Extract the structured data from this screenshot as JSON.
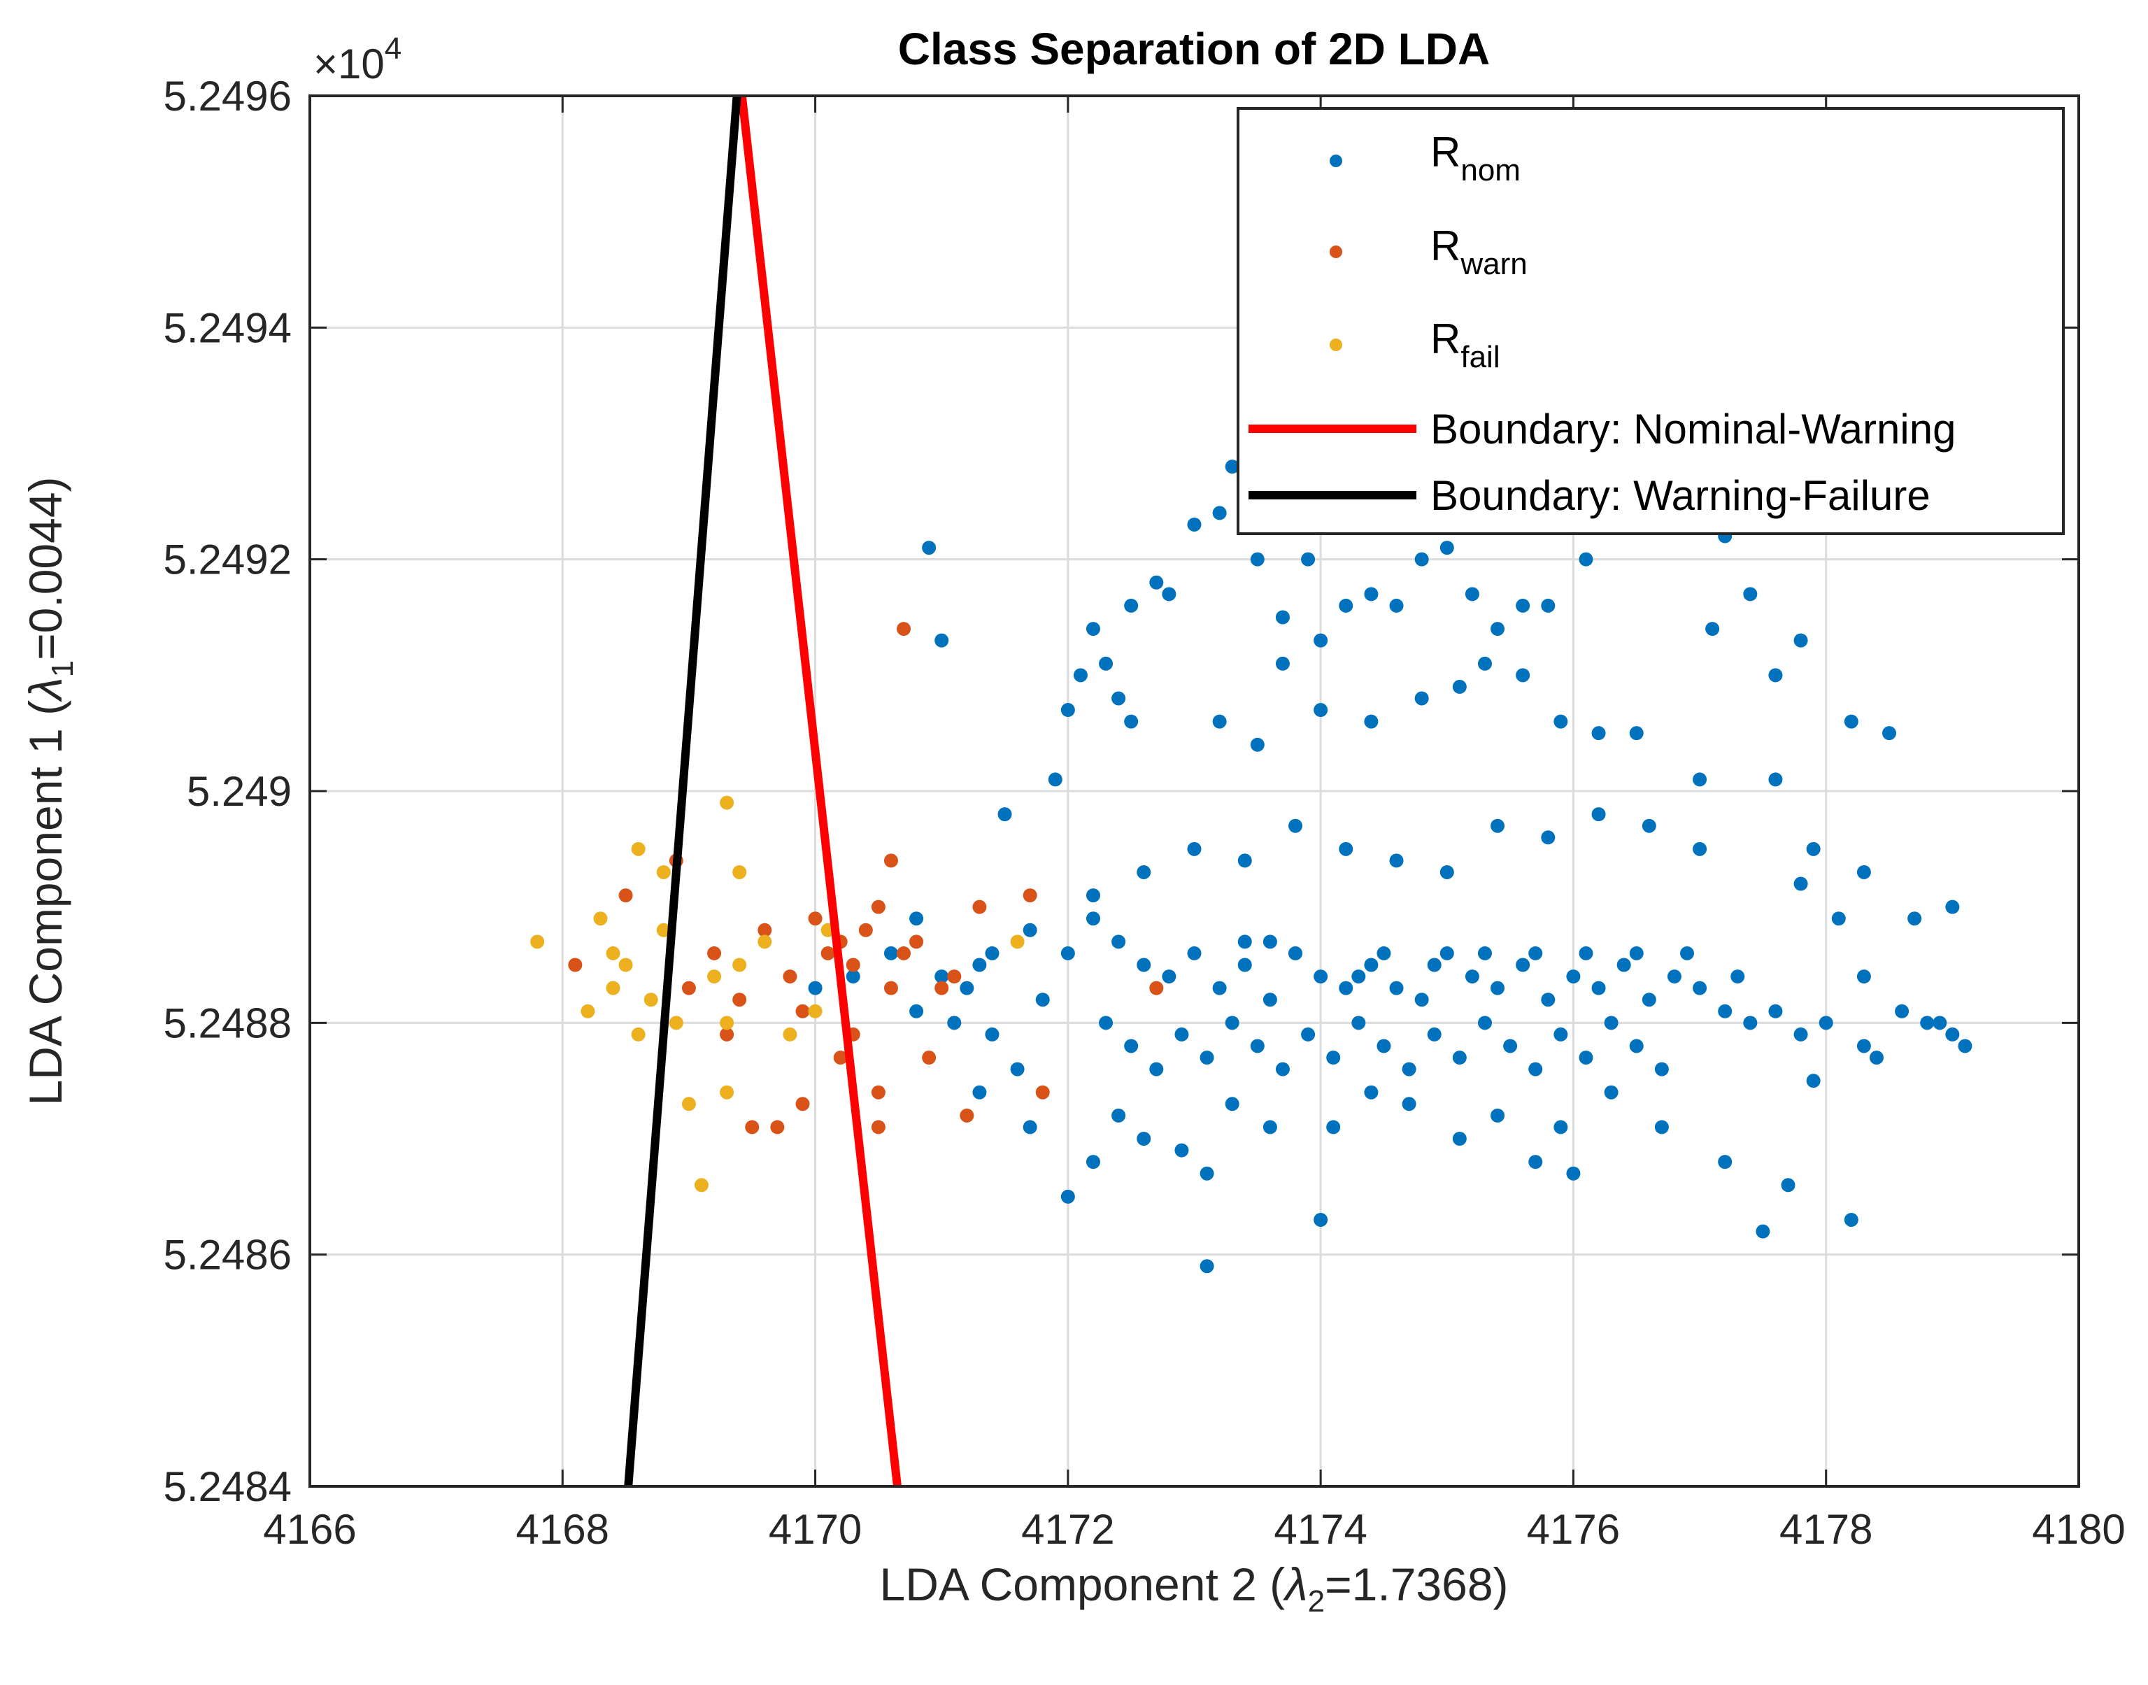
{
  "chart_data": {
    "type": "scatter",
    "title": "Class Separation of 2D LDA",
    "xlabel": {
      "prefix": "LDA Component 2 (",
      "symbol": "λ",
      "sub": "2",
      "suffix": "=1.7368)"
    },
    "ylabel": {
      "prefix": "LDA Component 1 (",
      "symbol": "λ",
      "sub": "1",
      "suffix": "=0.0044)"
    },
    "xlim": [
      4166,
      4180
    ],
    "ylim": [
      5.2484,
      5.2496
    ],
    "y_multiplier": {
      "base": "×10",
      "exp": "4"
    },
    "xticks": [
      4166,
      4168,
      4170,
      4172,
      4174,
      4176,
      4178,
      4180
    ],
    "xtick_labels": [
      "4166",
      "4168",
      "4170",
      "4172",
      "4174",
      "4176",
      "4178",
      "4180"
    ],
    "yticks": [
      5.2484,
      5.2486,
      5.2488,
      5.249,
      5.2492,
      5.2494,
      5.2496
    ],
    "ytick_labels": [
      "5.2484",
      "5.2486",
      "5.2488",
      "5.249",
      "5.2492",
      "5.2494",
      "5.2496"
    ],
    "grid": true,
    "legend_position": "top-right",
    "colors": {
      "nominal": "#0072BD",
      "warning": "#D95319",
      "failure": "#EDB120",
      "boundary_nw": "#FF0000",
      "boundary_wf": "#000000"
    },
    "series": [
      {
        "name": "R",
        "sub": "nom",
        "kind": "scatter",
        "color_key": "nominal",
        "points": [
          [
            4170.9,
            5.24921
          ],
          [
            4171.0,
            5.24913
          ],
          [
            4171.5,
            5.24898
          ],
          [
            4171.9,
            5.24901
          ],
          [
            4172.0,
            5.24907
          ],
          [
            4172.1,
            5.2491
          ],
          [
            4172.3,
            5.24911
          ],
          [
            4172.2,
            5.24914
          ],
          [
            4172.4,
            5.24908
          ],
          [
            4172.5,
            5.24906
          ],
          [
            4172.5,
            5.24916
          ],
          [
            4172.7,
            5.24918
          ],
          [
            4172.8,
            5.24917
          ],
          [
            4173.0,
            5.24923
          ],
          [
            4173.2,
            5.24924
          ],
          [
            4173.3,
            5.24928
          ],
          [
            4173.4,
            5.24933
          ],
          [
            4173.5,
            5.2492
          ],
          [
            4173.7,
            5.24915
          ],
          [
            4173.9,
            5.2492
          ],
          [
            4174.0,
            5.24913
          ],
          [
            4174.2,
            5.24916
          ],
          [
            4174.4,
            5.24917
          ],
          [
            4174.6,
            5.24916
          ],
          [
            4174.8,
            5.2492
          ],
          [
            4175.0,
            5.24921
          ],
          [
            4175.2,
            5.24917
          ],
          [
            4175.4,
            5.24914
          ],
          [
            4175.6,
            5.24916
          ],
          [
            4175.8,
            5.24916
          ],
          [
            4176.1,
            5.2492
          ],
          [
            4177.2,
            5.24922
          ],
          [
            4177.4,
            5.24917
          ],
          [
            4177.8,
            5.24913
          ],
          [
            4177.1,
            5.24914
          ],
          [
            4173.2,
            5.24906
          ],
          [
            4173.5,
            5.24904
          ],
          [
            4173.7,
            5.24911
          ],
          [
            4174.0,
            5.24907
          ],
          [
            4174.4,
            5.24906
          ],
          [
            4174.8,
            5.24908
          ],
          [
            4175.1,
            5.24909
          ],
          [
            4175.3,
            5.24911
          ],
          [
            4175.6,
            5.2491
          ],
          [
            4175.9,
            5.24906
          ],
          [
            4176.2,
            5.24905
          ],
          [
            4176.5,
            5.24905
          ],
          [
            4177.0,
            5.24901
          ],
          [
            4177.6,
            5.2491
          ],
          [
            4178.2,
            5.24906
          ],
          [
            4172.0,
            5.24886
          ],
          [
            4172.2,
            5.24889
          ],
          [
            4172.4,
            5.24887
          ],
          [
            4172.6,
            5.24885
          ],
          [
            4172.8,
            5.24884
          ],
          [
            4173.0,
            5.24886
          ],
          [
            4173.2,
            5.24883
          ],
          [
            4173.4,
            5.24885
          ],
          [
            4173.6,
            5.24882
          ],
          [
            4173.8,
            5.24886
          ],
          [
            4174.0,
            5.24884
          ],
          [
            4174.2,
            5.24883
          ],
          [
            4174.4,
            5.24885
          ],
          [
            4174.6,
            5.24883
          ],
          [
            4174.8,
            5.24882
          ],
          [
            4175.0,
            5.24886
          ],
          [
            4175.2,
            5.24884
          ],
          [
            4175.4,
            5.24883
          ],
          [
            4175.6,
            5.24885
          ],
          [
            4175.8,
            5.24882
          ],
          [
            4176.0,
            5.24884
          ],
          [
            4176.2,
            5.24883
          ],
          [
            4176.4,
            5.24885
          ],
          [
            4176.6,
            5.24882
          ],
          [
            4176.8,
            5.24884
          ],
          [
            4177.0,
            5.24883
          ],
          [
            4177.2,
            5.24881
          ],
          [
            4177.4,
            5.2488
          ],
          [
            4177.6,
            5.24881
          ],
          [
            4177.8,
            5.24879
          ],
          [
            4178.0,
            5.2488
          ],
          [
            4178.3,
            5.24878
          ],
          [
            4178.6,
            5.24881
          ],
          [
            4178.9,
            5.2488
          ],
          [
            4179.1,
            5.24878
          ],
          [
            4172.3,
            5.2488
          ],
          [
            4172.5,
            5.24878
          ],
          [
            4172.7,
            5.24876
          ],
          [
            4172.9,
            5.24879
          ],
          [
            4173.1,
            5.24877
          ],
          [
            4173.3,
            5.2488
          ],
          [
            4173.5,
            5.24878
          ],
          [
            4173.7,
            5.24876
          ],
          [
            4173.9,
            5.24879
          ],
          [
            4174.1,
            5.24877
          ],
          [
            4174.3,
            5.2488
          ],
          [
            4174.5,
            5.24878
          ],
          [
            4174.7,
            5.24876
          ],
          [
            4174.9,
            5.24879
          ],
          [
            4175.1,
            5.24877
          ],
          [
            4175.3,
            5.2488
          ],
          [
            4175.5,
            5.24878
          ],
          [
            4175.7,
            5.24876
          ],
          [
            4175.9,
            5.24879
          ],
          [
            4176.1,
            5.24877
          ],
          [
            4176.3,
            5.2488
          ],
          [
            4176.5,
            5.24878
          ],
          [
            4176.7,
            5.24876
          ],
          [
            4171.2,
            5.24883
          ],
          [
            4171.4,
            5.24879
          ],
          [
            4171.6,
            5.24876
          ],
          [
            4171.8,
            5.24882
          ],
          [
            4171.3,
            5.24874
          ],
          [
            4171.7,
            5.24871
          ],
          [
            4172.0,
            5.24865
          ],
          [
            4172.2,
            5.24868
          ],
          [
            4172.4,
            5.24872
          ],
          [
            4172.6,
            5.2487
          ],
          [
            4172.9,
            5.24869
          ],
          [
            4173.1,
            5.24867
          ],
          [
            4173.1,
            5.24859
          ],
          [
            4173.3,
            5.24873
          ],
          [
            4173.6,
            5.24871
          ],
          [
            4174.0,
            5.24863
          ],
          [
            4174.1,
            5.24871
          ],
          [
            4174.4,
            5.24874
          ],
          [
            4174.7,
            5.24873
          ],
          [
            4175.1,
            5.2487
          ],
          [
            4175.4,
            5.24872
          ],
          [
            4175.7,
            5.24868
          ],
          [
            4175.9,
            5.24871
          ],
          [
            4176.0,
            5.24867
          ],
          [
            4176.3,
            5.24874
          ],
          [
            4176.7,
            5.24871
          ],
          [
            4177.2,
            5.24868
          ],
          [
            4177.5,
            5.24862
          ],
          [
            4177.7,
            5.24866
          ],
          [
            4178.2,
            5.24863
          ],
          [
            4177.9,
            5.24875
          ],
          [
            4178.4,
            5.24877
          ],
          [
            4178.8,
            5.2488
          ],
          [
            4179.0,
            5.24879
          ],
          [
            4177.8,
            5.24892
          ],
          [
            4178.1,
            5.24889
          ],
          [
            4178.3,
            5.24884
          ],
          [
            4178.7,
            5.24889
          ],
          [
            4177.9,
            5.24895
          ],
          [
            4178.3,
            5.24893
          ],
          [
            4177.0,
            5.24895
          ],
          [
            4176.6,
            5.24897
          ],
          [
            4176.2,
            5.24898
          ],
          [
            4175.8,
            5.24896
          ],
          [
            4175.4,
            5.24897
          ],
          [
            4175.0,
            5.24893
          ],
          [
            4174.6,
            5.24894
          ],
          [
            4174.2,
            5.24895
          ],
          [
            4173.8,
            5.24897
          ],
          [
            4173.4,
            5.24894
          ],
          [
            4173.0,
            5.24895
          ],
          [
            4172.6,
            5.24893
          ],
          [
            4172.2,
            5.24891
          ],
          [
            4171.7,
            5.24888
          ],
          [
            4171.4,
            5.24886
          ],
          [
            4171.0,
            5.24884
          ],
          [
            4170.8,
            5.24889
          ],
          [
            4170.6,
            5.24886
          ],
          [
            4170.3,
            5.24884
          ],
          [
            4170.0,
            5.24883
          ],
          [
            4170.8,
            5.24881
          ],
          [
            4171.1,
            5.2488
          ],
          [
            4171.3,
            5.24885
          ],
          [
            4173.4,
            5.24887
          ],
          [
            4173.6,
            5.24887
          ],
          [
            4173.8,
            5.24886
          ],
          [
            4174.3,
            5.24884
          ],
          [
            4174.5,
            5.24886
          ],
          [
            4174.9,
            5.24885
          ],
          [
            4175.3,
            5.24886
          ],
          [
            4175.7,
            5.24886
          ],
          [
            4176.1,
            5.24886
          ],
          [
            4176.5,
            5.24886
          ],
          [
            4176.9,
            5.24886
          ],
          [
            4177.3,
            5.24884
          ],
          [
            4179.0,
            5.2489
          ],
          [
            4178.5,
            5.24905
          ],
          [
            4177.6,
            5.24901
          ]
        ]
      },
      {
        "name": "R",
        "sub": "warn",
        "kind": "scatter",
        "color_key": "warning",
        "points": [
          [
            4168.1,
            5.24885
          ],
          [
            4168.5,
            5.24891
          ],
          [
            4168.9,
            5.24894
          ],
          [
            4169.2,
            5.24886
          ],
          [
            4169.4,
            5.24882
          ],
          [
            4169.6,
            5.24888
          ],
          [
            4169.8,
            5.24884
          ],
          [
            4169.9,
            5.24881
          ],
          [
            4170.0,
            5.24889
          ],
          [
            4170.1,
            5.24886
          ],
          [
            4170.2,
            5.24887
          ],
          [
            4170.3,
            5.24885
          ],
          [
            4170.4,
            5.24888
          ],
          [
            4170.5,
            5.2489
          ],
          [
            4170.6,
            5.24883
          ],
          [
            4170.7,
            5.24886
          ],
          [
            4170.8,
            5.24887
          ],
          [
            4171.0,
            5.24883
          ],
          [
            4171.1,
            5.24884
          ],
          [
            4171.3,
            5.2489
          ],
          [
            4171.7,
            5.24891
          ],
          [
            4169.5,
            5.24871
          ],
          [
            4169.7,
            5.24871
          ],
          [
            4170.2,
            5.24877
          ],
          [
            4170.5,
            5.24874
          ],
          [
            4170.5,
            5.24871
          ],
          [
            4170.7,
            5.24914
          ],
          [
            4170.6,
            5.24894
          ],
          [
            4169.3,
            5.24879
          ],
          [
            4169.9,
            5.24873
          ],
          [
            4170.9,
            5.24877
          ],
          [
            4171.2,
            5.24872
          ],
          [
            4171.8,
            5.24874
          ],
          [
            4172.7,
            5.24883
          ],
          [
            4170.3,
            5.24879
          ],
          [
            4169.0,
            5.24883
          ]
        ]
      },
      {
        "name": "R",
        "sub": "fail",
        "kind": "scatter",
        "color_key": "failure",
        "points": [
          [
            4167.8,
            5.24887
          ],
          [
            4168.3,
            5.24889
          ],
          [
            4168.4,
            5.24886
          ],
          [
            4168.5,
            5.24885
          ],
          [
            4168.6,
            5.24879
          ],
          [
            4168.7,
            5.24882
          ],
          [
            4168.8,
            5.24893
          ],
          [
            4168.8,
            5.24888
          ],
          [
            4168.9,
            5.2488
          ],
          [
            4169.0,
            5.24873
          ],
          [
            4169.1,
            5.24866
          ],
          [
            4169.2,
            5.24884
          ],
          [
            4169.3,
            5.2488
          ],
          [
            4169.4,
            5.24885
          ],
          [
            4169.3,
            5.24899
          ],
          [
            4169.4,
            5.24893
          ],
          [
            4169.6,
            5.24887
          ],
          [
            4169.8,
            5.24879
          ],
          [
            4170.0,
            5.24881
          ],
          [
            4168.4,
            5.24883
          ],
          [
            4168.2,
            5.24881
          ],
          [
            4168.6,
            5.24895
          ],
          [
            4169.3,
            5.24874
          ],
          [
            4171.6,
            5.24887
          ],
          [
            4170.1,
            5.24888
          ]
        ]
      },
      {
        "name": "Boundary: Nominal-Warning",
        "kind": "line",
        "color_key": "boundary_nw",
        "points": [
          [
            4169.42,
            5.2496
          ],
          [
            4170.65,
            5.2484
          ]
        ]
      },
      {
        "name": "Boundary: Warning-Failure",
        "kind": "line",
        "color_key": "boundary_wf",
        "points": [
          [
            4169.38,
            5.2496
          ],
          [
            4168.52,
            5.2484
          ]
        ]
      }
    ]
  }
}
